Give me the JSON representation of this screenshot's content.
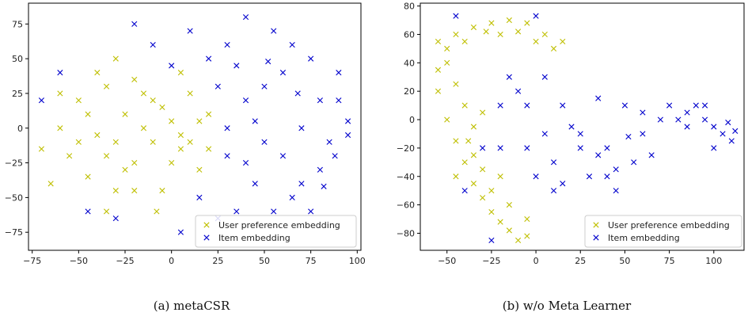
{
  "colors": {
    "user": "#bfbf00",
    "item": "#0000cc",
    "axis": "#000000"
  },
  "chart_data": [
    {
      "type": "scatter",
      "caption": "(a)  metaCSR",
      "xlim": [
        -77,
        102
      ],
      "ylim": [
        -88,
        90
      ],
      "x_ticks": [
        -75,
        -50,
        -25,
        0,
        25,
        50,
        75,
        100
      ],
      "x_tick_labels": [
        "−75",
        "−50",
        "−25",
        "0",
        "25",
        "50",
        "75",
        "100"
      ],
      "y_ticks": [
        -75,
        -50,
        -25,
        0,
        25,
        50,
        75
      ],
      "y_tick_labels": [
        "−75",
        "−50",
        "−25",
        "0",
        "25",
        "50",
        "75"
      ],
      "legend": "lower-right",
      "grid": false,
      "series": [
        {
          "name": "User preference embedding",
          "marker": "x",
          "color": "#bfbf00",
          "points": [
            [
              -60,
              0
            ],
            [
              -50,
              20
            ],
            [
              -45,
              -35
            ],
            [
              -35,
              30
            ],
            [
              -30,
              -10
            ],
            [
              -25,
              10
            ],
            [
              -20,
              -25
            ],
            [
              -15,
              0
            ],
            [
              -10,
              20
            ],
            [
              -5,
              -45
            ],
            [
              0,
              5
            ],
            [
              5,
              -15
            ],
            [
              10,
              25
            ],
            [
              15,
              -30
            ],
            [
              20,
              10
            ],
            [
              -55,
              -20
            ],
            [
              -40,
              -5
            ],
            [
              -30,
              -45
            ],
            [
              -20,
              35
            ],
            [
              -10,
              -10
            ],
            [
              -5,
              15
            ],
            [
              -25,
              -30
            ],
            [
              0,
              -25
            ],
            [
              -45,
              10
            ],
            [
              -35,
              -20
            ],
            [
              5,
              -5
            ],
            [
              -15,
              25
            ],
            [
              -20,
              -45
            ],
            [
              -50,
              -10
            ],
            [
              -60,
              25
            ],
            [
              -40,
              40
            ],
            [
              10,
              -10
            ],
            [
              -65,
              -40
            ],
            [
              -70,
              -15
            ],
            [
              15,
              5
            ],
            [
              -35,
              -60
            ],
            [
              -30,
              50
            ],
            [
              5,
              40
            ],
            [
              20,
              -15
            ],
            [
              -8,
              -60
            ]
          ]
        },
        {
          "name": "Item embedding",
          "marker": "x",
          "color": "#0000cc",
          "points": [
            [
              30,
              60
            ],
            [
              40,
              20
            ],
            [
              50,
              -10
            ],
            [
              60,
              40
            ],
            [
              70,
              0
            ],
            [
              80,
              -30
            ],
            [
              90,
              20
            ],
            [
              45,
              -40
            ],
            [
              35,
              -60
            ],
            [
              55,
              70
            ],
            [
              65,
              -50
            ],
            [
              75,
              50
            ],
            [
              85,
              -10
            ],
            [
              95,
              5
            ],
            [
              25,
              30
            ],
            [
              30,
              -20
            ],
            [
              40,
              80
            ],
            [
              50,
              30
            ],
            [
              60,
              -20
            ],
            [
              70,
              -40
            ],
            [
              80,
              20
            ],
            [
              90,
              40
            ],
            [
              20,
              50
            ],
            [
              10,
              70
            ],
            [
              0,
              45
            ],
            [
              -10,
              60
            ],
            [
              -20,
              75
            ],
            [
              5,
              -75
            ],
            [
              -30,
              -65
            ],
            [
              -45,
              -60
            ],
            [
              30,
              0
            ],
            [
              45,
              5
            ],
            [
              55,
              -60
            ],
            [
              65,
              60
            ],
            [
              75,
              -60
            ],
            [
              -60,
              40
            ],
            [
              -70,
              20
            ],
            [
              35,
              45
            ],
            [
              15,
              -50
            ],
            [
              25,
              -65
            ],
            [
              40,
              -25
            ],
            [
              52,
              48
            ],
            [
              68,
              25
            ],
            [
              82,
              -42
            ],
            [
              88,
              -20
            ],
            [
              95,
              -5
            ]
          ]
        }
      ]
    },
    {
      "type": "scatter",
      "caption": "(b)  w/o Meta Learner",
      "xlim": [
        -65,
        117
      ],
      "ylim": [
        -92,
        82
      ],
      "x_ticks": [
        -50,
        -25,
        0,
        25,
        50,
        75,
        100
      ],
      "x_tick_labels": [
        "−50",
        "−25",
        "0",
        "25",
        "50",
        "75",
        "100"
      ],
      "y_ticks": [
        -80,
        -60,
        -40,
        -20,
        0,
        20,
        40,
        60,
        80
      ],
      "y_tick_labels": [
        "−80",
        "−60",
        "−40",
        "−20",
        "0",
        "20",
        "40",
        "60",
        "80"
      ],
      "legend": "lower-right",
      "grid": false,
      "series": [
        {
          "name": "User preference embedding",
          "marker": "x",
          "color": "#bfbf00",
          "points": [
            [
              -55,
              55
            ],
            [
              -50,
              40
            ],
            [
              -45,
              60
            ],
            [
              -35,
              65
            ],
            [
              -25,
              68
            ],
            [
              -15,
              70
            ],
            [
              -5,
              68
            ],
            [
              5,
              60
            ],
            [
              15,
              55
            ],
            [
              -55,
              20
            ],
            [
              -50,
              0
            ],
            [
              -45,
              -15
            ],
            [
              -40,
              -30
            ],
            [
              -35,
              -45
            ],
            [
              -30,
              -55
            ],
            [
              -25,
              -65
            ],
            [
              -20,
              -72
            ],
            [
              -15,
              -78
            ],
            [
              -10,
              -85
            ],
            [
              -5,
              -82
            ],
            [
              -40,
              10
            ],
            [
              -35,
              -5
            ],
            [
              -30,
              5
            ],
            [
              -45,
              -40
            ],
            [
              -55,
              35
            ],
            [
              -40,
              55
            ],
            [
              -20,
              60
            ],
            [
              0,
              55
            ],
            [
              10,
              50
            ],
            [
              -25,
              -50
            ],
            [
              -15,
              -60
            ],
            [
              -20,
              -40
            ],
            [
              -45,
              25
            ],
            [
              -35,
              -25
            ],
            [
              -30,
              -35
            ],
            [
              -5,
              -70
            ],
            [
              -50,
              50
            ],
            [
              -28,
              62
            ],
            [
              -10,
              62
            ],
            [
              -38,
              -15
            ]
          ]
        },
        {
          "name": "Item embedding",
          "marker": "x",
          "color": "#0000cc",
          "points": [
            [
              -45,
              73
            ],
            [
              -25,
              -85
            ],
            [
              0,
              73
            ],
            [
              15,
              10
            ],
            [
              25,
              -10
            ],
            [
              30,
              -40
            ],
            [
              35,
              15
            ],
            [
              40,
              -20
            ],
            [
              45,
              -50
            ],
            [
              50,
              10
            ],
            [
              55,
              -30
            ],
            [
              60,
              -10
            ],
            [
              65,
              -25
            ],
            [
              70,
              0
            ],
            [
              75,
              10
            ],
            [
              80,
              0
            ],
            [
              85,
              5
            ],
            [
              90,
              10
            ],
            [
              95,
              0
            ],
            [
              100,
              -5
            ],
            [
              105,
              -10
            ],
            [
              110,
              -15
            ],
            [
              -5,
              -20
            ],
            [
              0,
              -40
            ],
            [
              5,
              -10
            ],
            [
              10,
              -50
            ],
            [
              15,
              -45
            ],
            [
              -10,
              20
            ],
            [
              -30,
              -20
            ],
            [
              -40,
              -50
            ],
            [
              -20,
              10
            ],
            [
              20,
              -5
            ],
            [
              -15,
              30
            ],
            [
              -5,
              10
            ],
            [
              5,
              30
            ],
            [
              45,
              -35
            ],
            [
              35,
              -25
            ],
            [
              60,
              5
            ],
            [
              85,
              -5
            ],
            [
              95,
              10
            ],
            [
              108,
              -2
            ],
            [
              112,
              -8
            ],
            [
              100,
              -20
            ],
            [
              -20,
              -20
            ],
            [
              10,
              -30
            ],
            [
              25,
              -20
            ],
            [
              40,
              -40
            ],
            [
              52,
              -12
            ]
          ]
        }
      ]
    }
  ]
}
